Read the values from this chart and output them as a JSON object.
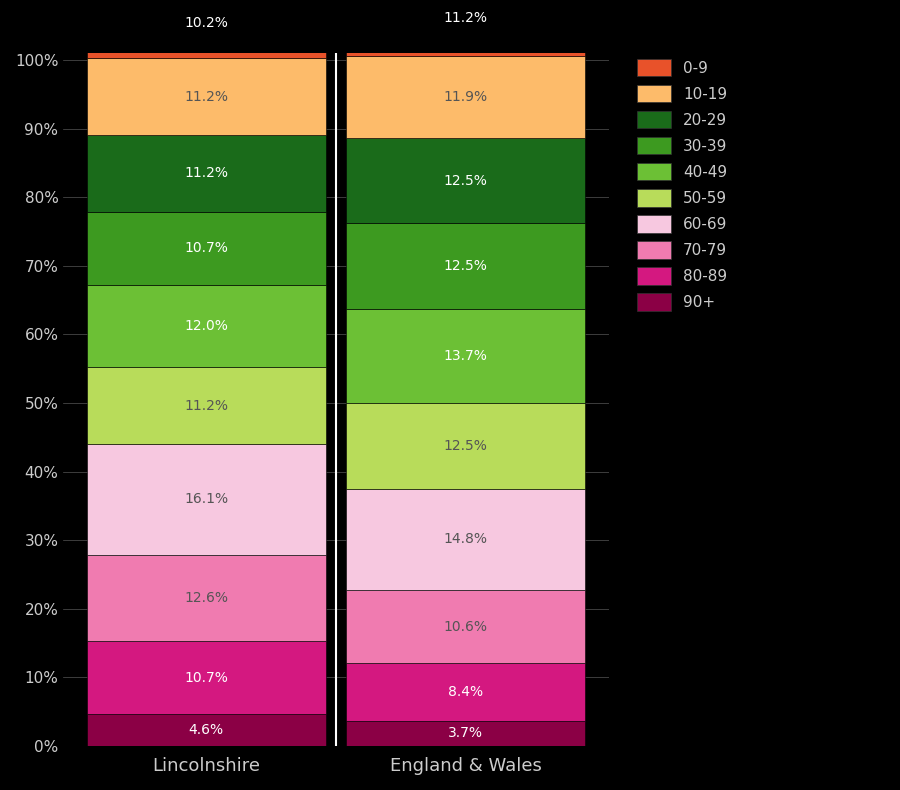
{
  "categories": [
    "Lincolnshire",
    "England & Wales"
  ],
  "stack_order_bottom_to_top": [
    "90+",
    "80-89",
    "70-79",
    "60-69",
    "50-59",
    "40-49",
    "30-39",
    "20-29",
    "10-19",
    "0-9"
  ],
  "lincolnshire": {
    "90+": 4.6,
    "80-89": 10.7,
    "70-79": 12.6,
    "60-69": 16.1,
    "50-59": 11.2,
    "40-49": 12.0,
    "30-39": 10.7,
    "20-29": 11.2,
    "10-19": 11.2,
    "0-9": 10.2
  },
  "england_wales": {
    "90+": 3.7,
    "80-89": 8.4,
    "70-79": 10.6,
    "60-69": 14.8,
    "50-59": 12.5,
    "40-49": 13.7,
    "30-39": 12.5,
    "20-29": 12.5,
    "10-19": 11.9,
    "0-9": 11.2
  },
  "colors": {
    "0-9": "#E8522A",
    "10-19": "#FDBB6A",
    "20-29": "#1A6B1A",
    "30-39": "#3D9A20",
    "40-49": "#6CC035",
    "50-59": "#B8DC5A",
    "60-69": "#F7C8E0",
    "70-79": "#F07BB0",
    "80-89": "#D41880",
    "90+": "#8B0045"
  },
  "label_colors": {
    "0-9": "#FFFFFF",
    "10-19": "#555555",
    "20-29": "#FFFFFF",
    "30-39": "#FFFFFF",
    "40-49": "#FFFFFF",
    "50-59": "#555555",
    "60-69": "#555555",
    "70-79": "#555555",
    "80-89": "#FFFFFF",
    "90+": "#FFFFFF"
  },
  "background_color": "#000000",
  "text_color": "#CCCCCC",
  "figure_width": 9.0,
  "figure_height": 7.9,
  "yticks": [
    0,
    10,
    20,
    30,
    40,
    50,
    60,
    70,
    80,
    90,
    100
  ],
  "ytick_labels": [
    "0%",
    "10%",
    "20%",
    "30%",
    "40%",
    "50%",
    "60%",
    "70%",
    "80%",
    "90%",
    "100%"
  ],
  "legend_order": [
    "0-9",
    "10-19",
    "20-29",
    "30-39",
    "40-49",
    "50-59",
    "60-69",
    "70-79",
    "80-89",
    "90+"
  ]
}
